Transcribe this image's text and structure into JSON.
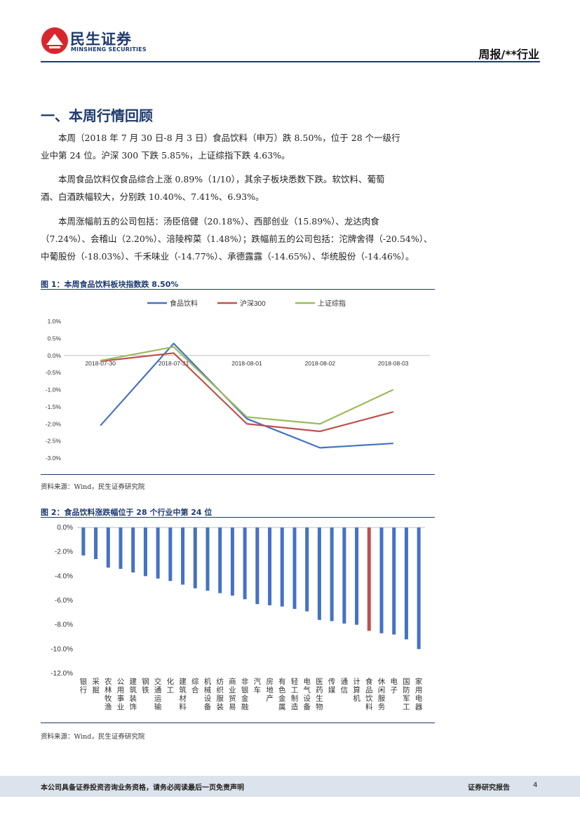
{
  "header": {
    "logo_cn": "民生证券",
    "logo_en": "MINSHENG SECURITIES",
    "report_type": "周报/**行业"
  },
  "section": {
    "title": "一、本周行情回顾"
  },
  "paragraphs": [
    [
      "本周（2018 年 7 月 30 日-8 月 3 日）食品饮料（申万）跌 8.50%，位于 28 个一级行",
      "业中第 24 位。沪深 300 下跌 5.85%，上证综指下跌 4.63%。"
    ],
    [
      "本周食品饮料仅食品综合上涨 0.89%（1/10），其余子板块悉数下跌。软饮料、葡萄",
      "酒、白酒跌幅较大，分别跌 10.40%、7.41%、6.93%。"
    ],
    [
      "本周涨幅前五的公司包括：汤臣倍健（20.18%）、西部创业（15.89%）、龙达肉食",
      "（7.24%）、会稽山（2.20%）、涪陵榨菜（1.48%）；跌幅前五的公司包括：沱牌舍得（-20.54%）、",
      "中葡股份（-18.03%）、千禾味业（-14.77%）、承德露露（-14.65%）、华统股份（-14.46%）。"
    ]
  ],
  "figure1": {
    "title": "图 1：本周食品饮料板块指数跌 8.50%",
    "source": "资料来源：Wind，民生证券研究院"
  },
  "figure2": {
    "title": "图 2：食品饮料涨跌幅位于 28 个行业中第 24 位",
    "source": "资料来源：Wind，民生证券研究院"
  },
  "chart_data": [
    {
      "type": "line",
      "title": "",
      "x": [
        "2018-07-30",
        "2018-07-31",
        "2018-08-01",
        "2018-08-02",
        "2018-08-03"
      ],
      "ylim": [
        -3.0,
        1.0
      ],
      "yticks": [
        "1.0%",
        "0.5%",
        "0.0%",
        "-0.5%",
        "-1.0%",
        "-1.5%",
        "-2.0%",
        "-2.5%",
        "-3.0%"
      ],
      "legend_position": "top",
      "grid": false,
      "series": [
        {
          "name": "食品饮料",
          "color": "#4472c4",
          "values": [
            -2.05,
            0.35,
            -1.85,
            -2.7,
            -2.57
          ]
        },
        {
          "name": "沪深300",
          "color": "#c0504d",
          "values": [
            -0.17,
            0.07,
            -2.0,
            -2.22,
            -1.65
          ]
        },
        {
          "name": "上证综指",
          "color": "#9bbb59",
          "values": [
            -0.15,
            0.25,
            -1.8,
            -2.0,
            -1.0
          ]
        }
      ]
    },
    {
      "type": "bar",
      "title": "",
      "ylim": [
        -12.0,
        0.0
      ],
      "yticks": [
        "0.0%",
        "-2.0%",
        "-4.0%",
        "-6.0%",
        "-8.0%",
        "-10.0%",
        "-12.0%"
      ],
      "grid": false,
      "bar_color": "#4472c4",
      "highlight_color": "#c0504d",
      "highlight_category": "食品饮料",
      "categories": [
        "银行",
        "采掘",
        "农林牧渔",
        "公用事业",
        "建筑装饰",
        "钢铁",
        "交通运输",
        "化工",
        "建筑材料",
        "综合",
        "机械设备",
        "纺织服装",
        "商业贸易",
        "非银金融",
        "汽车",
        "房地产",
        "有色金属",
        "轻工制造",
        "电气设备",
        "医药生物",
        "传媒",
        "通信",
        "计算机",
        "食品饮料",
        "休闲服务",
        "电子",
        "国防军工",
        "家用电器"
      ],
      "values": [
        -2.3,
        -2.6,
        -3.3,
        -3.4,
        -3.7,
        -4.0,
        -4.2,
        -4.4,
        -4.7,
        -5.0,
        -5.2,
        -5.4,
        -5.6,
        -5.9,
        -6.3,
        -6.4,
        -6.5,
        -6.7,
        -6.9,
        -7.6,
        -7.7,
        -7.9,
        -8.0,
        -8.5,
        -8.7,
        -8.8,
        -9.2,
        -10.0
      ]
    }
  ],
  "footer": {
    "disclaimer": "本公司具备证券投资咨询业务资格，请务必阅读最后一页免责声明",
    "doc_type": "证券研究报告",
    "page": "4"
  }
}
